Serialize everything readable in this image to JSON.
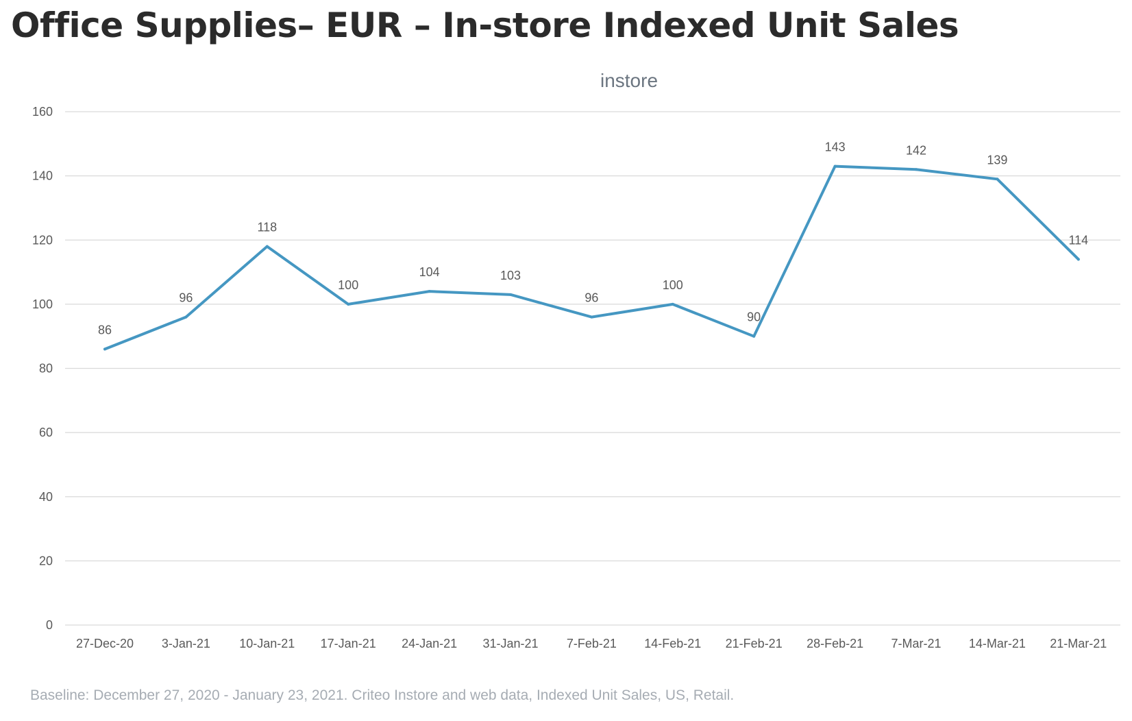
{
  "page": {
    "title": "Office Supplies– EUR – In-store Indexed Unit Sales",
    "footnote": "Baseline: December 27, 2020 - January 23, 2021. Criteo Instore and web data, Indexed Unit Sales, US, Retail."
  },
  "chart_data": {
    "type": "line",
    "title": "instore",
    "xlabel": "",
    "ylabel": "",
    "categories": [
      "27-Dec-20",
      "3-Jan-21",
      "10-Jan-21",
      "17-Jan-21",
      "24-Jan-21",
      "31-Jan-21",
      "7-Feb-21",
      "14-Feb-21",
      "21-Feb-21",
      "28-Feb-21",
      "7-Mar-21",
      "14-Mar-21",
      "21-Mar-21"
    ],
    "series": [
      {
        "values": [
          86,
          96,
          118,
          100,
          104,
          103,
          96,
          100,
          90,
          143,
          142,
          139,
          114
        ],
        "labels": [
          "86",
          "96",
          "118",
          "100",
          "104",
          "103",
          "96",
          "100",
          "90",
          "143",
          "142",
          "139",
          "114"
        ],
        "color": "#4597c2"
      }
    ],
    "ylim": [
      0,
      160
    ],
    "yticks": [
      "0",
      "20",
      "40",
      "60",
      "80",
      "100",
      "120",
      "140",
      "160"
    ],
    "grid": true,
    "legend": "none",
    "colors": {
      "line": "#4597c2",
      "grid": "#d9d9d9",
      "axis_text": "#595959",
      "title_text": "#6b7580"
    }
  }
}
